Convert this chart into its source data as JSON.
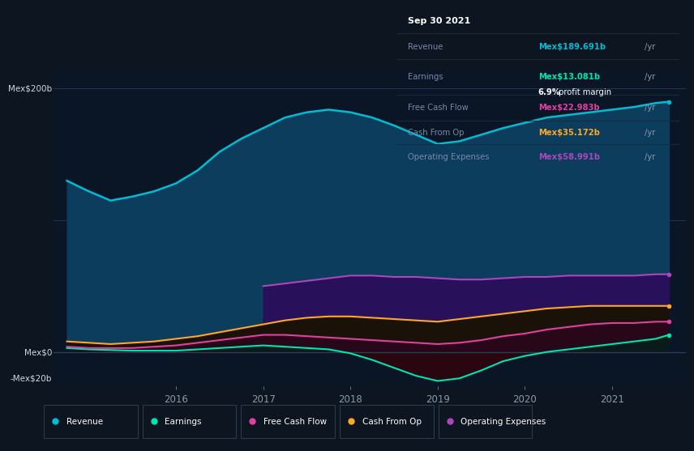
{
  "bg_color": "#0d1520",
  "chart_bg": "#0a1525",
  "years_x": [
    2014.75,
    2015.0,
    2015.25,
    2015.5,
    2015.75,
    2016.0,
    2016.25,
    2016.5,
    2016.75,
    2017.0,
    2017.25,
    2017.5,
    2017.75,
    2018.0,
    2018.25,
    2018.5,
    2018.75,
    2019.0,
    2019.25,
    2019.5,
    2019.75,
    2020.0,
    2020.25,
    2020.5,
    2020.75,
    2021.0,
    2021.25,
    2021.5,
    2021.65
  ],
  "revenue": [
    130,
    122,
    115,
    118,
    122,
    128,
    138,
    152,
    162,
    170,
    178,
    182,
    184,
    182,
    178,
    172,
    165,
    158,
    160,
    165,
    170,
    174,
    178,
    180,
    182,
    184,
    186,
    189,
    190
  ],
  "earnings": [
    3,
    2,
    1.5,
    1,
    1,
    1,
    2,
    3,
    4,
    5,
    4,
    3,
    2,
    -1,
    -6,
    -12,
    -18,
    -22,
    -20,
    -14,
    -7,
    -3,
    0,
    2,
    4,
    6,
    8,
    10,
    13
  ],
  "free_cash_flow": [
    4,
    3,
    3,
    3,
    4,
    5,
    7,
    9,
    11,
    13,
    13,
    12,
    11,
    10,
    9,
    8,
    7,
    6,
    7,
    9,
    12,
    14,
    17,
    19,
    21,
    22,
    22,
    23,
    23
  ],
  "cash_from_op": [
    8,
    7,
    6,
    7,
    8,
    10,
    12,
    15,
    18,
    21,
    24,
    26,
    27,
    27,
    26,
    25,
    24,
    23,
    25,
    27,
    29,
    31,
    33,
    34,
    35,
    35,
    35,
    35,
    35
  ],
  "op_expenses": [
    0,
    0,
    0,
    0,
    0,
    0,
    0,
    0,
    0,
    50,
    52,
    54,
    56,
    58,
    58,
    57,
    57,
    56,
    55,
    55,
    56,
    57,
    57,
    58,
    58,
    58,
    58,
    59,
    59
  ],
  "revenue_color": "#00bcd4",
  "earnings_color": "#00e5b0",
  "fcf_color": "#e040a0",
  "cashop_color": "#ffa726",
  "opex_color": "#ab47bc",
  "revenue_fill": "#0d3d5c",
  "opex_fill": "#2d1060",
  "cashop_fill": "#1a1000",
  "fcf_fill": "#2a0828",
  "earnings_pos_fill": "#083028",
  "earnings_neg_fill": "#3a0818",
  "ylim_min": -26,
  "ylim_max": 215,
  "xlim_min": 2014.6,
  "xlim_max": 2021.85,
  "ytick_labels": [
    "Mex$200b",
    "Mex$0",
    "-Mex$20b"
  ],
  "ytick_values": [
    200,
    0,
    -20
  ],
  "xtick_labels": [
    "2016",
    "2017",
    "2018",
    "2019",
    "2020",
    "2021"
  ],
  "xtick_values": [
    2016,
    2017,
    2018,
    2019,
    2020,
    2021
  ],
  "legend_labels": [
    "Revenue",
    "Earnings",
    "Free Cash Flow",
    "Cash From Op",
    "Operating Expenses"
  ],
  "legend_colors": [
    "#00bcd4",
    "#00e5b0",
    "#e040a0",
    "#ffa726",
    "#ab47bc"
  ],
  "info_box": {
    "date": "Sep 30 2021",
    "rows": [
      {
        "label": "Revenue",
        "value": "Mex$189.691b",
        "color": "#00bcd4",
        "has_margin": false
      },
      {
        "label": "Earnings",
        "value": "Mex$13.081b",
        "color": "#00e5b0",
        "has_margin": true
      },
      {
        "label": "Free Cash Flow",
        "value": "Mex$22.983b",
        "color": "#e040a0",
        "has_margin": false
      },
      {
        "label": "Cash From Op",
        "value": "Mex$35.172b",
        "color": "#ffa726",
        "has_margin": false
      },
      {
        "label": "Operating Expenses",
        "value": "Mex$58.991b",
        "color": "#ab47bc",
        "has_margin": false
      }
    ],
    "margin_pct": "6.9%",
    "margin_text": " profit margin"
  }
}
